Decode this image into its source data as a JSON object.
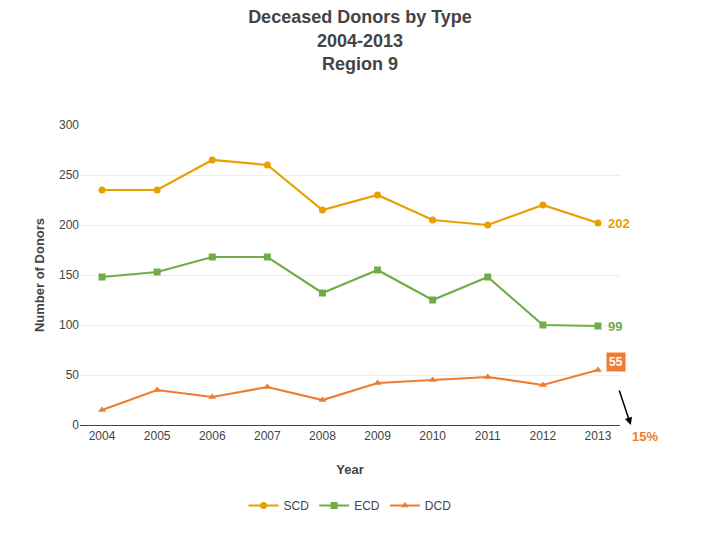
{
  "chart_data": {
    "type": "line",
    "title": "Deceased Donors by Type\n2004-2013\nRegion 9",
    "xlabel": "Year",
    "ylabel": "Number of Donors",
    "x": [
      2004,
      2005,
      2006,
      2007,
      2008,
      2009,
      2010,
      2011,
      2012,
      2013
    ],
    "series": [
      {
        "name": "SCD",
        "color": "#E8A000",
        "marker": "circle",
        "values": [
          235,
          235,
          265,
          260,
          215,
          230,
          205,
          200,
          220,
          202
        ]
      },
      {
        "name": "ECD",
        "color": "#70AD47",
        "marker": "square",
        "values": [
          148,
          153,
          168,
          168,
          132,
          155,
          125,
          148,
          100,
          99
        ]
      },
      {
        "name": "DCD",
        "color": "#ED7D31",
        "marker": "triangle-up",
        "values": [
          15,
          35,
          28,
          38,
          25,
          42,
          45,
          48,
          40,
          55
        ]
      }
    ],
    "xlim": [
      2003.6,
      2013.4
    ],
    "xticks": [
      2004,
      2005,
      2006,
      2007,
      2008,
      2009,
      2010,
      2011,
      2012,
      2013
    ],
    "ylim": [
      0,
      300
    ],
    "yticks": [
      0,
      50,
      100,
      150,
      200,
      250,
      300
    ],
    "grid": true,
    "legend": "bottom",
    "annotations": [
      {
        "text": "202",
        "series": "SCD"
      },
      {
        "text": "99",
        "series": "ECD"
      },
      {
        "text": "55",
        "series": "DCD"
      },
      {
        "text": "15%",
        "series": "DCD"
      }
    ]
  }
}
